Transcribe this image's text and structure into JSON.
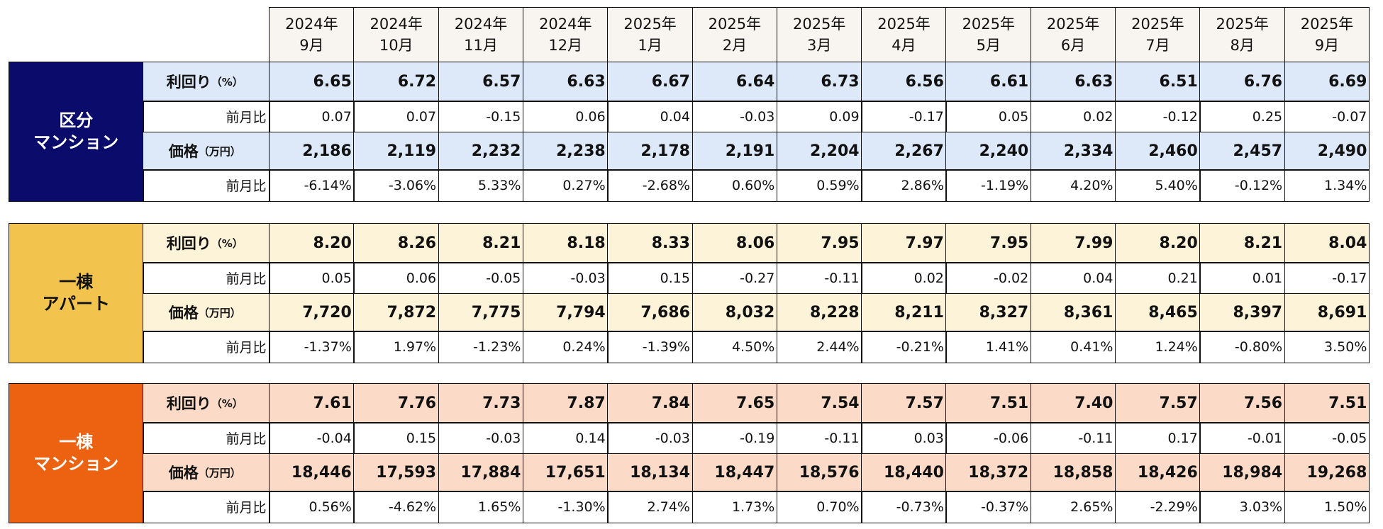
{
  "header": {
    "columns": [
      {
        "year": "2024年",
        "month": "9月"
      },
      {
        "year": "2024年",
        "month": "10月"
      },
      {
        "year": "2024年",
        "month": "11月"
      },
      {
        "year": "2024年",
        "month": "12月"
      },
      {
        "year": "2025年",
        "month": "1月"
      },
      {
        "year": "2025年",
        "month": "2月"
      },
      {
        "year": "2025年",
        "month": "3月"
      },
      {
        "year": "2025年",
        "month": "4月"
      },
      {
        "year": "2025年",
        "month": "5月"
      },
      {
        "year": "2025年",
        "month": "6月"
      },
      {
        "year": "2025年",
        "month": "7月"
      },
      {
        "year": "2025年",
        "month": "8月"
      },
      {
        "year": "2025年",
        "month": "9月"
      }
    ]
  },
  "sections": [
    {
      "label": [
        "区分",
        "マンション"
      ],
      "rows": [
        {
          "label": "利回り",
          "unit": "（%）",
          "values": [
            "6.65",
            "6.72",
            "6.57",
            "6.63",
            "6.67",
            "6.64",
            "6.73",
            "6.56",
            "6.61",
            "6.63",
            "6.51",
            "6.76",
            "6.69"
          ]
        },
        {
          "label": "前月比",
          "values": [
            "0.07",
            "0.07",
            "-0.15",
            "0.06",
            "0.04",
            "-0.03",
            "0.09",
            "-0.17",
            "0.05",
            "0.02",
            "-0.12",
            "0.25",
            "-0.07"
          ]
        },
        {
          "label": "価格",
          "unit": "（万円）",
          "values": [
            "2,186",
            "2,119",
            "2,232",
            "2,238",
            "2,178",
            "2,191",
            "2,204",
            "2,267",
            "2,240",
            "2,334",
            "2,460",
            "2,457",
            "2,490"
          ]
        },
        {
          "label": "前月比",
          "values": [
            "-6.14%",
            "-3.06%",
            "5.33%",
            "0.27%",
            "-2.68%",
            "0.60%",
            "0.59%",
            "2.86%",
            "-1.19%",
            "4.20%",
            "5.40%",
            "-0.12%",
            "1.34%"
          ]
        }
      ]
    },
    {
      "label": [
        "一棟",
        "アパート"
      ],
      "rows": [
        {
          "label": "利回り",
          "unit": "（%）",
          "values": [
            "8.20",
            "8.26",
            "8.21",
            "8.18",
            "8.33",
            "8.06",
            "7.95",
            "7.97",
            "7.95",
            "7.99",
            "8.20",
            "8.21",
            "8.04"
          ]
        },
        {
          "label": "前月比",
          "values": [
            "0.05",
            "0.06",
            "-0.05",
            "-0.03",
            "0.15",
            "-0.27",
            "-0.11",
            "0.02",
            "-0.02",
            "0.04",
            "0.21",
            "0.01",
            "-0.17"
          ]
        },
        {
          "label": "価格",
          "unit": "（万円）",
          "values": [
            "7,720",
            "7,872",
            "7,775",
            "7,794",
            "7,686",
            "8,032",
            "8,228",
            "8,211",
            "8,327",
            "8,361",
            "8,465",
            "8,397",
            "8,691"
          ]
        },
        {
          "label": "前月比",
          "values": [
            "-1.37%",
            "1.97%",
            "-1.23%",
            "0.24%",
            "-1.39%",
            "4.50%",
            "2.44%",
            "-0.21%",
            "1.41%",
            "0.41%",
            "1.24%",
            "-0.80%",
            "3.50%"
          ]
        }
      ]
    },
    {
      "label": [
        "一棟",
        "マンション"
      ],
      "rows": [
        {
          "label": "利回り",
          "unit": "（%）",
          "values": [
            "7.61",
            "7.76",
            "7.73",
            "7.87",
            "7.84",
            "7.65",
            "7.54",
            "7.57",
            "7.51",
            "7.40",
            "7.57",
            "7.56",
            "7.51"
          ]
        },
        {
          "label": "前月比",
          "values": [
            "-0.04",
            "0.15",
            "-0.03",
            "0.14",
            "-0.03",
            "-0.19",
            "-0.11",
            "0.03",
            "-0.06",
            "-0.11",
            "0.17",
            "-0.01",
            "-0.05"
          ]
        },
        {
          "label": "価格",
          "unit": "（万円）",
          "values": [
            "18,446",
            "17,593",
            "17,884",
            "17,651",
            "18,134",
            "18,447",
            "18,576",
            "18,440",
            "18,372",
            "18,858",
            "18,426",
            "18,984",
            "19,268"
          ]
        },
        {
          "label": "前月比",
          "values": [
            "0.56%",
            "-4.62%",
            "1.65%",
            "-1.30%",
            "2.74%",
            "1.73%",
            "0.70%",
            "-0.73%",
            "-0.37%",
            "2.65%",
            "-2.29%",
            "3.03%",
            "1.50%"
          ]
        }
      ]
    }
  ]
}
